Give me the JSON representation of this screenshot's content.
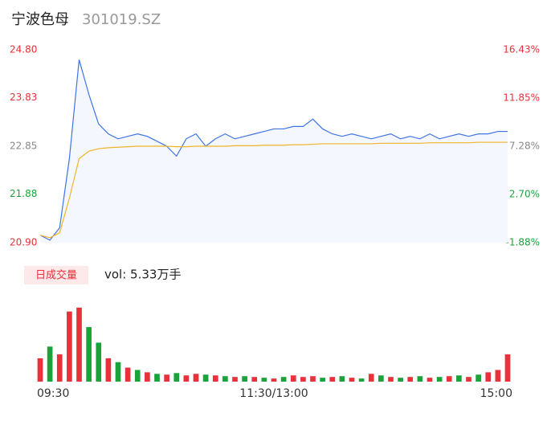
{
  "header": {
    "title": "宁波色母",
    "code": "301019.SZ"
  },
  "chart_data": {
    "type": "intraday",
    "categories": [
      "09:30",
      null,
      null,
      null,
      null,
      null,
      null,
      null,
      null,
      null,
      null,
      null,
      null,
      null,
      null,
      null,
      null,
      null,
      null,
      null,
      null,
      null,
      null,
      null,
      "11:30/13:00",
      null,
      null,
      null,
      null,
      null,
      null,
      null,
      null,
      null,
      null,
      null,
      null,
      null,
      null,
      null,
      null,
      null,
      null,
      null,
      null,
      null,
      null,
      null,
      "15:00"
    ],
    "series": [
      {
        "name": "price",
        "color": "#3f74e6",
        "values": [
          21.05,
          20.95,
          21.2,
          22.6,
          24.6,
          23.9,
          23.3,
          23.1,
          23.0,
          23.05,
          23.1,
          23.05,
          22.95,
          22.85,
          22.65,
          23.0,
          23.1,
          22.85,
          23.0,
          23.1,
          23.0,
          23.05,
          23.1,
          23.15,
          23.2,
          23.2,
          23.25,
          23.25,
          23.4,
          23.2,
          23.1,
          23.05,
          23.1,
          23.05,
          23.0,
          23.05,
          23.1,
          23.0,
          23.05,
          23.0,
          23.1,
          23.0,
          23.05,
          23.1,
          23.05,
          23.1,
          23.1,
          23.15,
          23.15
        ]
      },
      {
        "name": "avg",
        "color": "#f0b429",
        "values": [
          21.05,
          21.0,
          21.1,
          21.8,
          22.6,
          22.75,
          22.8,
          22.82,
          22.83,
          22.84,
          22.85,
          22.85,
          22.85,
          22.85,
          22.84,
          22.84,
          22.85,
          22.85,
          22.85,
          22.85,
          22.86,
          22.86,
          22.86,
          22.87,
          22.87,
          22.87,
          22.88,
          22.88,
          22.89,
          22.9,
          22.9,
          22.9,
          22.9,
          22.9,
          22.9,
          22.91,
          22.91,
          22.91,
          22.91,
          22.91,
          22.92,
          22.92,
          22.92,
          22.92,
          22.92,
          22.93,
          22.93,
          22.93,
          22.93
        ]
      }
    ],
    "ylim": [
      20.9,
      24.8
    ],
    "yticks": [
      {
        "value": 24.8,
        "label": "24.80"
      },
      {
        "value": 23.83,
        "label": "23.83"
      },
      {
        "value": 22.85,
        "label": "22.85"
      },
      {
        "value": 21.88,
        "label": "21.88"
      },
      {
        "value": 20.9,
        "label": "20.90"
      }
    ],
    "ytick_colors": [
      "#e8313a",
      "#e8313a",
      "#888888",
      "#1aa33a",
      "#e8313a"
    ],
    "y2lim": [
      -1.88,
      16.43
    ],
    "y2ticks": [
      {
        "value": 16.43,
        "label": "16.43%"
      },
      {
        "value": 11.85,
        "label": "11.85%"
      },
      {
        "value": 7.28,
        "label": "7.28%"
      },
      {
        "value": 2.7,
        "label": "2.70%"
      },
      {
        "value": -1.88,
        "label": "-1.88%"
      }
    ],
    "y2tick_colors": [
      "#e8313a",
      "#e8313a",
      "#888888",
      "#1aa33a",
      "#1aa33a"
    ],
    "fill": "#f4f7fd",
    "volume": {
      "button": "日成交量",
      "label": "vol: 5.33万手",
      "ylim": [
        0,
        1000
      ],
      "values": [
        300,
        450,
        350,
        900,
        950,
        700,
        500,
        300,
        250,
        180,
        150,
        120,
        100,
        90,
        110,
        80,
        100,
        90,
        80,
        70,
        60,
        70,
        60,
        50,
        40,
        60,
        80,
        60,
        70,
        50,
        60,
        70,
        50,
        40,
        100,
        80,
        60,
        50,
        60,
        70,
        50,
        60,
        70,
        80,
        60,
        90,
        120,
        150,
        350
      ],
      "colors": [
        "#e8313a",
        "#1aa33a",
        "#e8313a",
        "#e8313a",
        "#e8313a",
        "#1aa33a",
        "#1aa33a",
        "#e8313a",
        "#1aa33a",
        "#e8313a",
        "#1aa33a",
        "#e8313a",
        "#1aa33a",
        "#e8313a",
        "#1aa33a",
        "#e8313a",
        "#e8313a",
        "#1aa33a",
        "#e8313a",
        "#1aa33a",
        "#e8313a",
        "#1aa33a",
        "#e8313a",
        "#1aa33a",
        "#e8313a",
        "#1aa33a",
        "#e8313a",
        "#e8313a",
        "#e8313a",
        "#1aa33a",
        "#e8313a",
        "#1aa33a",
        "#e8313a",
        "#1aa33a",
        "#e8313a",
        "#1aa33a",
        "#e8313a",
        "#1aa33a",
        "#e8313a",
        "#1aa33a",
        "#e8313a",
        "#1aa33a",
        "#e8313a",
        "#1aa33a",
        "#e8313a",
        "#1aa33a",
        "#e8313a",
        "#e8313a",
        "#e8313a"
      ]
    }
  }
}
